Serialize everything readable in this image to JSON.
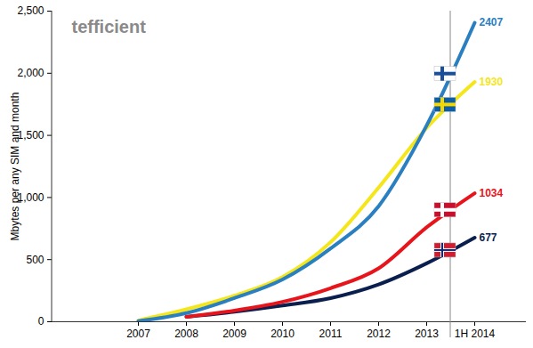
{
  "chart_data": {
    "type": "line",
    "title": "tefficient",
    "y_label": "Mbytes per any SIM and month",
    "categories": [
      "2007",
      "2008",
      "2009",
      "2010",
      "2011",
      "2012",
      "2013",
      "1H 2014"
    ],
    "series": [
      {
        "color": "#0b1f4f",
        "values": [
          null,
          40,
          80,
          130,
          190,
          300,
          470,
          677
        ],
        "value_labels": [
          null,
          null,
          null,
          null,
          null,
          null,
          null,
          "677"
        ]
      },
      {
        "color": "#e8141c",
        "values": [
          null,
          40,
          90,
          160,
          270,
          430,
          760,
          1034
        ],
        "value_labels": [
          null,
          null,
          null,
          null,
          null,
          null,
          null,
          "1034"
        ]
      },
      {
        "color": "#f5e61a",
        "values": [
          10,
          100,
          210,
          360,
          640,
          1080,
          1560,
          1930
        ],
        "value_labels": [
          null,
          null,
          null,
          null,
          null,
          null,
          null,
          "1930"
        ]
      },
      {
        "color": "#2a7fc1",
        "values": [
          5,
          70,
          190,
          340,
          590,
          930,
          1580,
          2407
        ],
        "value_labels": [
          null,
          null,
          null,
          null,
          null,
          null,
          null,
          "2407"
        ]
      }
    ],
    "ylim": [
      0,
      2500
    ],
    "yticks": [
      0,
      500,
      1000,
      1500,
      2000,
      2500
    ],
    "grid": false
  }
}
